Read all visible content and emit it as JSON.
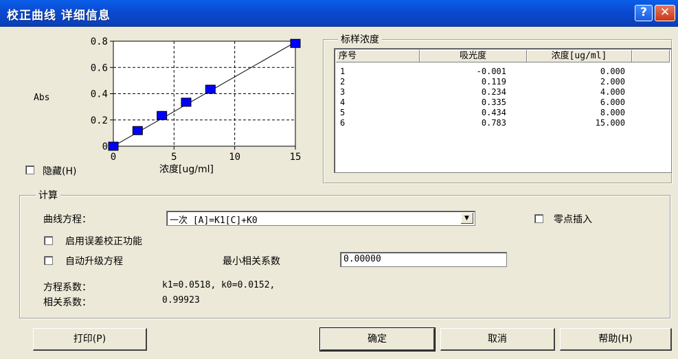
{
  "window": {
    "title": "校正曲线 详细信息",
    "help_glyph": "?",
    "close_glyph": "✕"
  },
  "chart": {
    "y_axis_label": "Abs",
    "x_axis_label": "浓度[ug/ml]",
    "x_ticks": [
      "0",
      "5",
      "10",
      "15"
    ],
    "y_ticks": [
      "0",
      "0.2",
      "0.4",
      "0.6",
      "0.8"
    ],
    "colors": {
      "marker": "#0000ff",
      "grid": "#000000",
      "line": "#000000"
    }
  },
  "chart_data": {
    "type": "scatter",
    "title": "",
    "xlabel": "浓度[ug/ml]",
    "ylabel": "Abs",
    "xlim": [
      0,
      15
    ],
    "ylim": [
      0,
      0.8
    ],
    "grid": true,
    "x": [
      0.0,
      2.0,
      4.0,
      6.0,
      8.0,
      15.0
    ],
    "y": [
      -0.001,
      0.119,
      0.234,
      0.335,
      0.434,
      0.783
    ],
    "fit_line": {
      "k1": 0.0518,
      "k0": 0.0152
    }
  },
  "hide_option": {
    "label": "隐藏(H)",
    "checked": false
  },
  "standards": {
    "group_title": "标样浓度",
    "columns": [
      "序号",
      "吸光度",
      "浓度[ug/ml]"
    ],
    "rows": [
      [
        "1",
        "-0.001",
        "0.000"
      ],
      [
        "2",
        "0.119",
        "2.000"
      ],
      [
        "3",
        "0.234",
        "4.000"
      ],
      [
        "4",
        "0.335",
        "6.000"
      ],
      [
        "5",
        "0.434",
        "8.000"
      ],
      [
        "6",
        "0.783",
        "15.000"
      ]
    ]
  },
  "calc": {
    "group_title": "计算",
    "equation_label": "曲线方程：",
    "equation_value": "一次 [A]=K1[C]+K0",
    "zero_insert_label": "零点插入",
    "zero_insert_checked": false,
    "error_correction_label": "启用误差校正功能",
    "error_correction_checked": false,
    "auto_upgrade_label": "自动升级方程",
    "auto_upgrade_checked": false,
    "min_corr_label": "最小相关系数",
    "min_corr_value": "0.00000",
    "coef_label": "方程系数：",
    "coef_value": "k1=0.0518, k0=0.0152,",
    "corr_label": "相关系数：",
    "corr_value": "0.99923"
  },
  "buttons": {
    "print": "打印(P)",
    "ok": "确定",
    "cancel": "取消",
    "help": "帮助(H)"
  }
}
